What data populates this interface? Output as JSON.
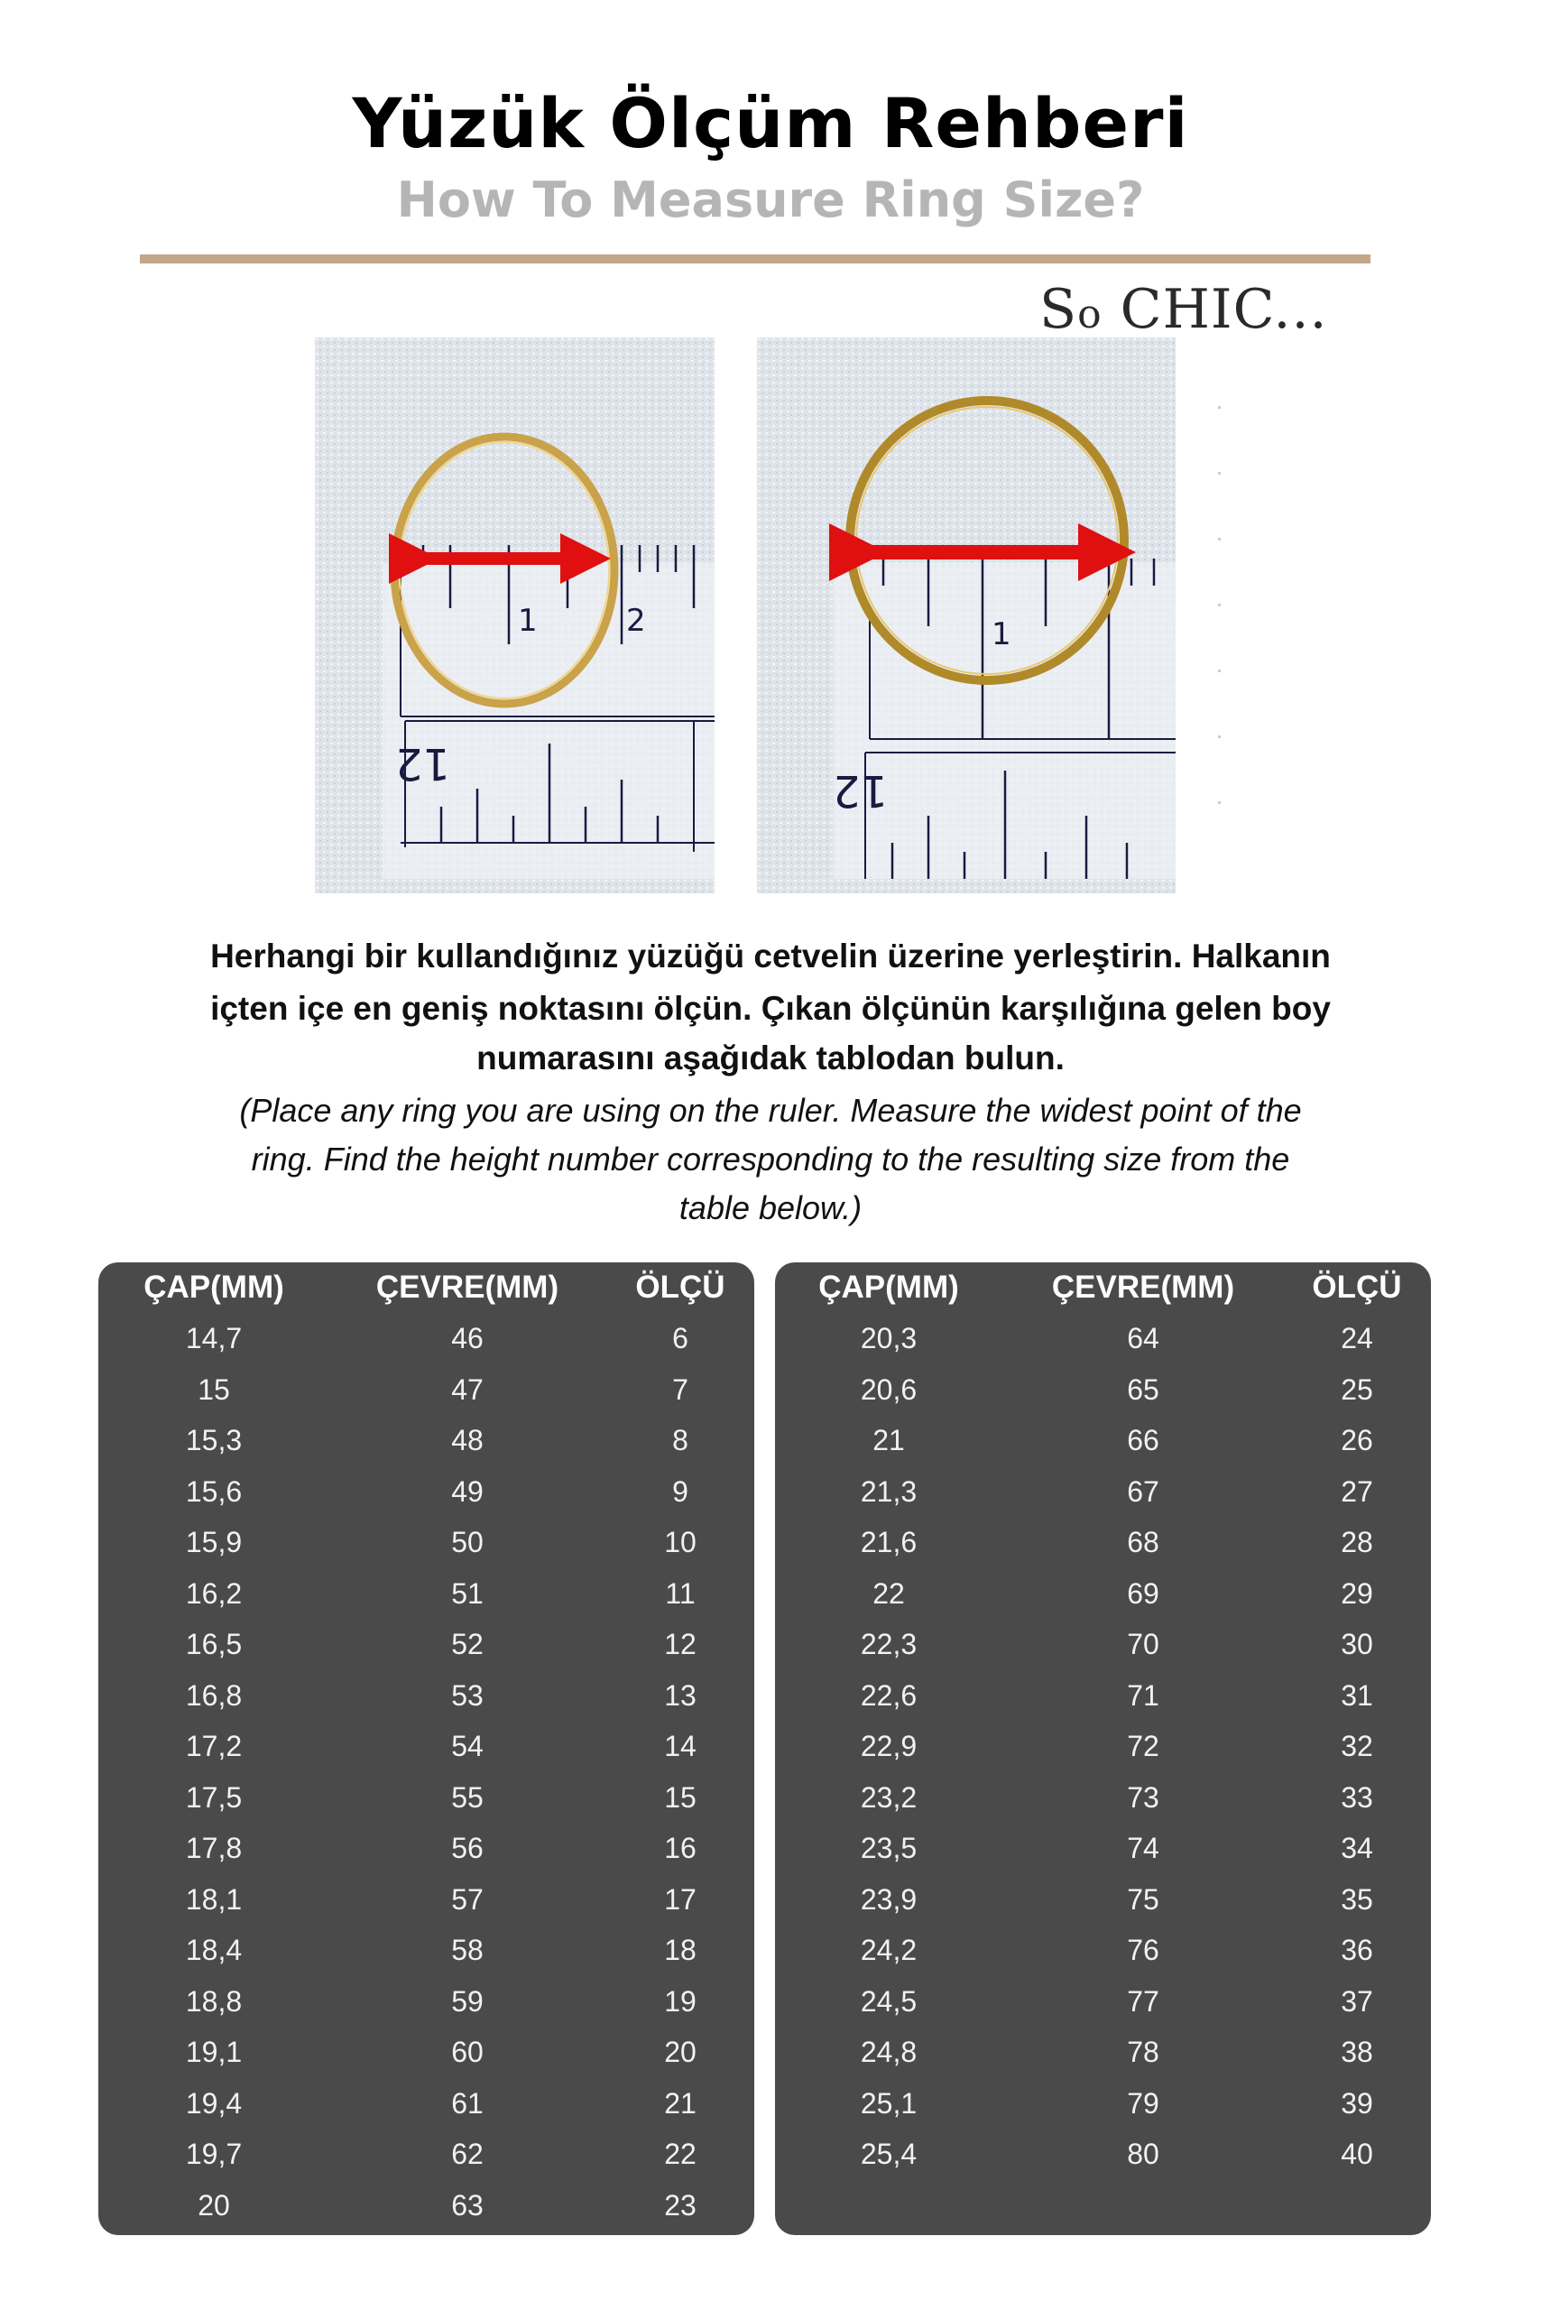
{
  "header": {
    "title": "Yüzük Ölçüm Rehberi",
    "subtitle": "How To Measure Ring Size?"
  },
  "brand": {
    "logo_text": "So CHIC...",
    "accent_color": "#c4a688"
  },
  "photos": {
    "ruler_label_top_1": "1",
    "ruler_label_top_2": "2",
    "ruler_label_bottom": "12"
  },
  "instructions": {
    "tr_lines": [
      "Herhangi bir kullandığınız yüzüğü cetvelin üzerine yerleştirin. Halkanın",
      "içten içe en geniş noktasını ölçün. Çıkan ölçünün karşılığına gelen boy",
      "numarasını aşağıdak tablodan bulun."
    ],
    "en_lines": [
      "(Place any ring you are using on the ruler. Measure the widest point of the",
      "ring. Find the height number corresponding to the resulting size from the",
      "table below.)"
    ]
  },
  "tables": {
    "headers": [
      "ÇAP(MM)",
      "ÇEVRE(MM)",
      "ÖLÇÜ"
    ],
    "left_rows": [
      [
        "14,7",
        "46",
        "6"
      ],
      [
        "15",
        "47",
        "7"
      ],
      [
        "15,3",
        "48",
        "8"
      ],
      [
        "15,6",
        "49",
        "9"
      ],
      [
        "15,9",
        "50",
        "10"
      ],
      [
        "16,2",
        "51",
        "11"
      ],
      [
        "16,5",
        "52",
        "12"
      ],
      [
        "16,8",
        "53",
        "13"
      ],
      [
        "17,2",
        "54",
        "14"
      ],
      [
        "17,5",
        "55",
        "15"
      ],
      [
        "17,8",
        "56",
        "16"
      ],
      [
        "18,1",
        "57",
        "17"
      ],
      [
        "18,4",
        "58",
        "18"
      ],
      [
        "18,8",
        "59",
        "19"
      ],
      [
        "19,1",
        "60",
        "20"
      ],
      [
        "19,4",
        "61",
        "21"
      ],
      [
        "19,7",
        "62",
        "22"
      ],
      [
        "20",
        "63",
        "23"
      ]
    ],
    "right_rows": [
      [
        "20,3",
        "64",
        "24"
      ],
      [
        "20,6",
        "65",
        "25"
      ],
      [
        "21",
        "66",
        "26"
      ],
      [
        "21,3",
        "67",
        "27"
      ],
      [
        "21,6",
        "68",
        "28"
      ],
      [
        "22",
        "69",
        "29"
      ],
      [
        "22,3",
        "70",
        "30"
      ],
      [
        "22,6",
        "71",
        "31"
      ],
      [
        "22,9",
        "72",
        "32"
      ],
      [
        "23,2",
        "73",
        "33"
      ],
      [
        "23,5",
        "74",
        "34"
      ],
      [
        "23,9",
        "75",
        "35"
      ],
      [
        "24,2",
        "76",
        "36"
      ],
      [
        "24,5",
        "77",
        "37"
      ],
      [
        "24,8",
        "78",
        "38"
      ],
      [
        "25,1",
        "79",
        "39"
      ],
      [
        "25,4",
        "80",
        "40"
      ]
    ],
    "bg_color": "#4a4a4a"
  }
}
